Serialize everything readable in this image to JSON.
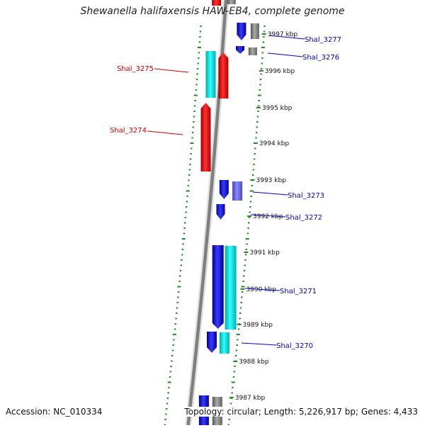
{
  "title": "Shewanella halifaxensis HAW-EB4, complete genome",
  "accession": "Accession: NC_010334",
  "topology": "Topology: circular; Length: 5,226,917 bp; Genes: 4,433",
  "colors": {
    "backbone": "#808080",
    "forward_strand": "#0000ee",
    "reverse_strand": "#ff0000",
    "cyan_feature": "#00dddd",
    "gray_feature": "#808080",
    "gc_ticks": "#228b22",
    "label_blue": "#0000cc",
    "label_red": "#cc0000"
  },
  "kbp_ticks": [
    "3997 kbp",
    "3996 kbp",
    "3995 kbp",
    "3994 kbp",
    "3993 kbp",
    "3992 kbp",
    "3991 kbp",
    "3990 kbp",
    "3989 kbp",
    "3988 kbp",
    "3987 kbp"
  ],
  "gene_labels": [
    {
      "name": "Shal_3277",
      "strand": "forward"
    },
    {
      "name": "Shal_3276",
      "strand": "forward"
    },
    {
      "name": "Shal_3275",
      "strand": "reverse"
    },
    {
      "name": "Shal_3274",
      "strand": "reverse"
    },
    {
      "name": "Shal_3273",
      "strand": "forward"
    },
    {
      "name": "Shal_3272",
      "strand": "forward"
    },
    {
      "name": "Shal_3271",
      "strand": "forward"
    },
    {
      "name": "Shal_3270",
      "strand": "forward"
    }
  ]
}
